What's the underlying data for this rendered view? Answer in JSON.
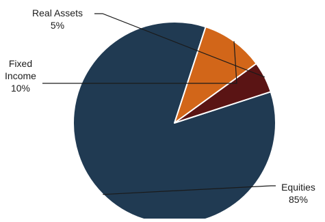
{
  "chart_data": {
    "type": "pie",
    "title": "",
    "slices": [
      {
        "label": "Equities",
        "value": 85,
        "value_label": "85%",
        "color": "#203a52"
      },
      {
        "label": "Fixed Income",
        "value": 10,
        "value_label": "10%",
        "color": "#d26619"
      },
      {
        "label": "Real Assets",
        "value": 5,
        "value_label": "5%",
        "color": "#5a1414"
      }
    ],
    "start_angle_deg": -18,
    "direction": "clockwise",
    "legend": "none",
    "data_labels": "outside with leader lines"
  }
}
